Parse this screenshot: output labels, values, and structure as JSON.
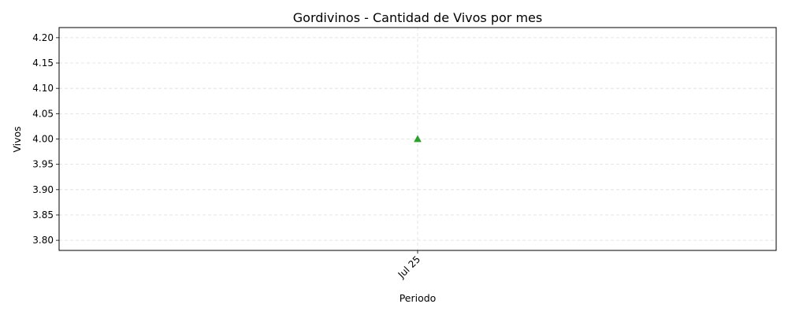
{
  "chart_data": {
    "type": "scatter",
    "title": "Gordivinos - Cantidad de Vivos por mes",
    "xlabel": "Periodo",
    "ylabel": "Vivos",
    "categories": [
      "Jul 25"
    ],
    "series": [
      {
        "values": [
          4.0
        ],
        "color": "#2ca02c",
        "marker": "triangle-up"
      }
    ],
    "ylim": [
      3.78,
      4.22
    ],
    "yticks": [
      "3.80",
      "3.85",
      "3.90",
      "3.95",
      "4.00",
      "4.05",
      "4.10",
      "4.15",
      "4.20"
    ],
    "x_tick_rotation": 45,
    "grid": true,
    "grid_style": "dashed"
  }
}
